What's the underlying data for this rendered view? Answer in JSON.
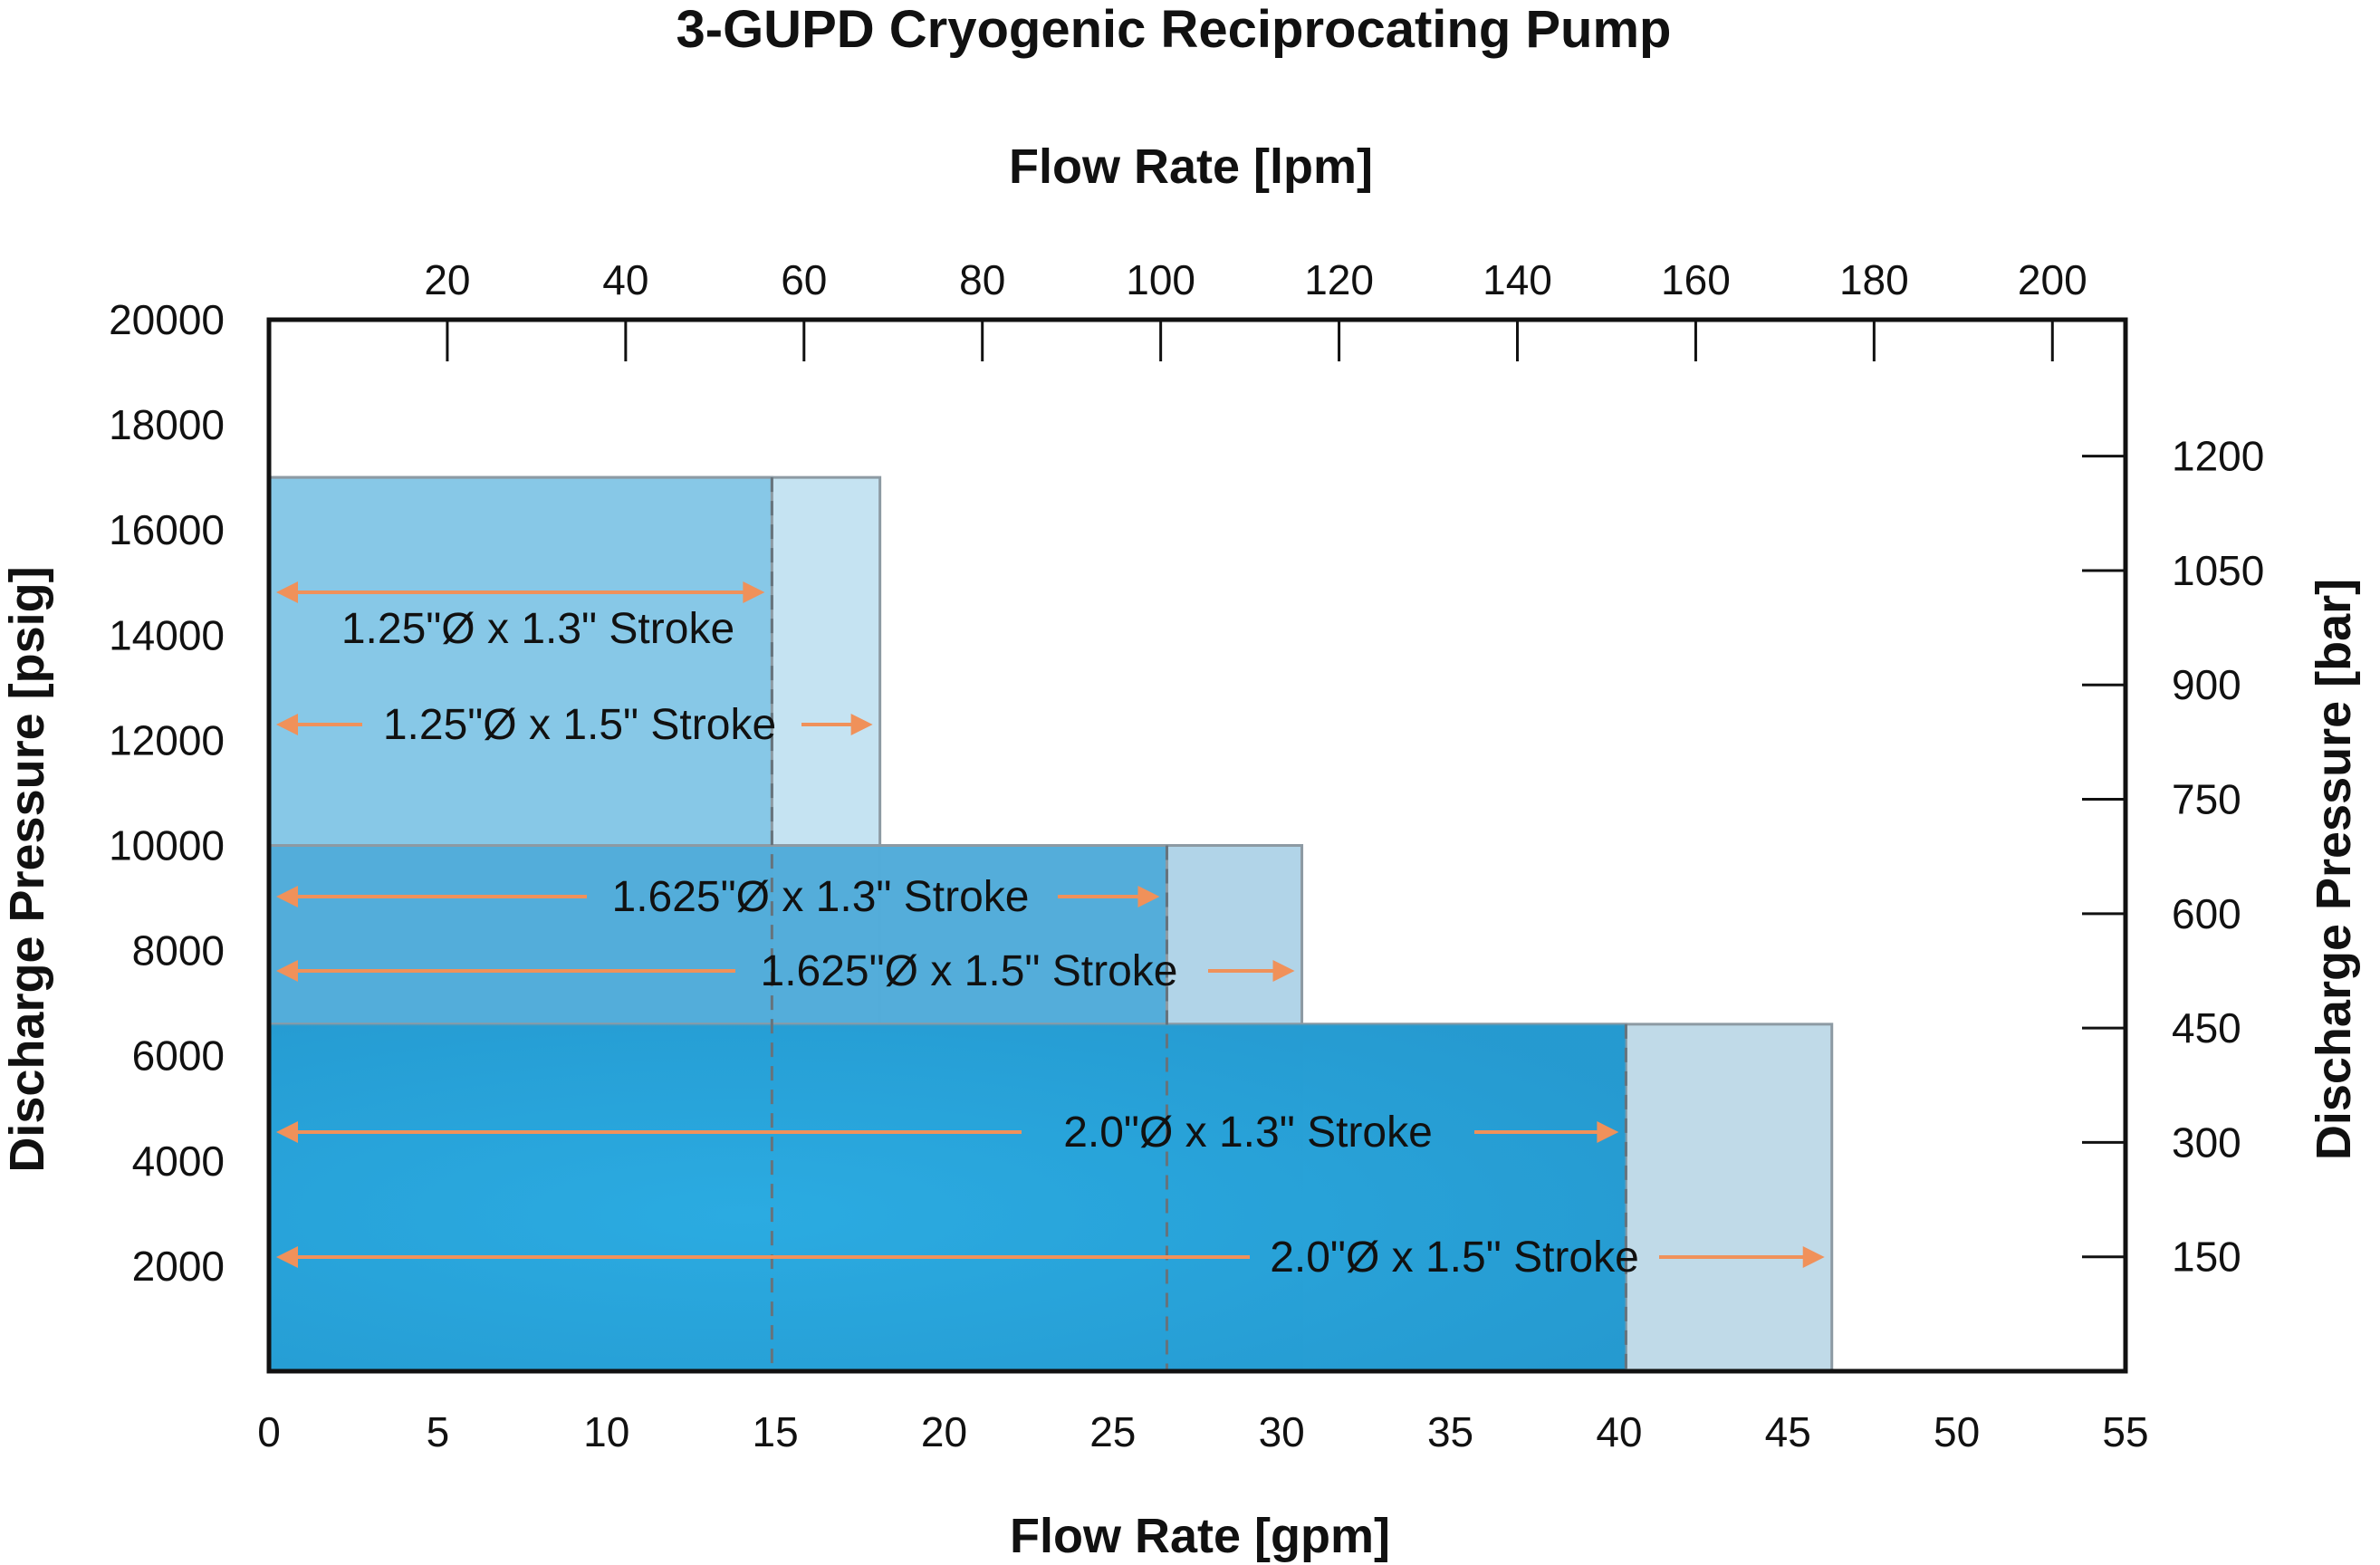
{
  "chart_data": {
    "type": "bar",
    "title": "3-GUPD Cryogenic Reciprocating Pump",
    "xlabel_bottom": "Flow Rate [gpm]",
    "xlabel_top": "Flow Rate [lpm]",
    "ylabel_left": "Discharge Pressure [psig]",
    "ylabel_right": "Discharge Pressure [bar]",
    "x_bottom": {
      "min": 0,
      "max": 55,
      "ticks": [
        0,
        5,
        10,
        15,
        20,
        25,
        30,
        35,
        40,
        45,
        50,
        55
      ]
    },
    "x_top": {
      "ticks": [
        20,
        40,
        60,
        80,
        100,
        120,
        140,
        160,
        180,
        200
      ]
    },
    "y_left": {
      "min": 0,
      "max": 20000,
      "ticks": [
        2000,
        4000,
        6000,
        8000,
        10000,
        12000,
        14000,
        16000,
        18000,
        20000
      ]
    },
    "y_right": {
      "ticks": [
        150,
        300,
        450,
        600,
        750,
        900,
        1050,
        1200
      ]
    },
    "series": [
      {
        "name": "1.25\"Ø x 1.3\" Stroke",
        "max_flow_gpm": 14.9,
        "max_pressure_psig": 17000,
        "color": "#7fc4e5"
      },
      {
        "name": "1.25\"Ø x 1.5\" Stroke",
        "max_flow_gpm": 18.1,
        "max_pressure_psig": 17000,
        "color": "#bfe0f1"
      },
      {
        "name": "1.625\"Ø x 1.3\" Stroke",
        "max_flow_gpm": 26.6,
        "max_pressure_psig": 10000,
        "color": "#4aa9d8"
      },
      {
        "name": "1.625\"Ø x 1.5\" Stroke",
        "max_flow_gpm": 30.6,
        "max_pressure_psig": 10000,
        "color": "#a9cfe5"
      },
      {
        "name": "2.0\"Ø x 1.3\" Stroke",
        "max_flow_gpm": 40.2,
        "max_pressure_psig": 6600,
        "color": "#2398cf"
      },
      {
        "name": "2.0\"Ø x 1.5\" Stroke",
        "max_flow_gpm": 46.3,
        "max_pressure_psig": 6600,
        "color": "#b9d6e6"
      }
    ],
    "arrow_color": "#f0915a",
    "grid": false
  }
}
